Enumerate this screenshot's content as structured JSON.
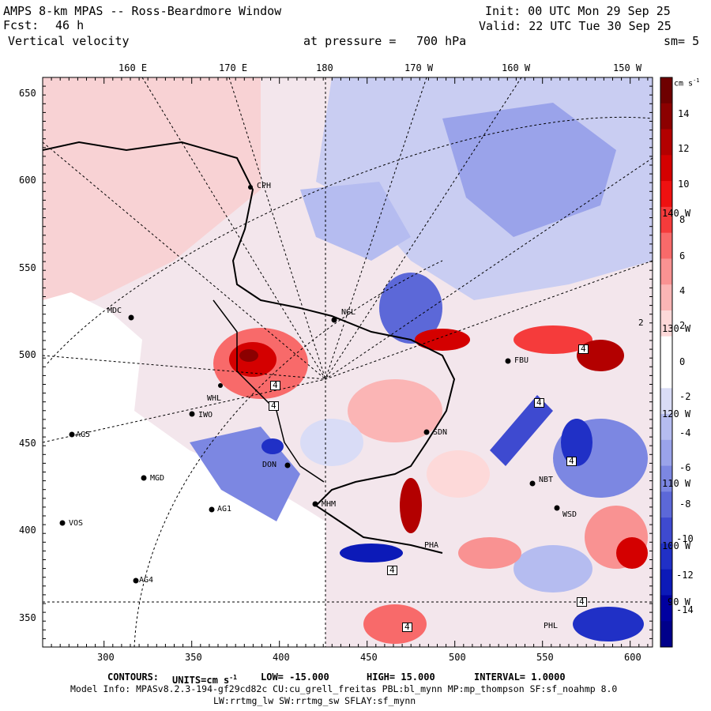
{
  "header": {
    "title": "AMPS 8-km MPAS -- Ross-Beardmore Window",
    "fcst_label": "Fcst:",
    "fcst_value": "46 h",
    "field": "Vertical velocity",
    "pressure_label": "at pressure =",
    "pressure_value": "700 hPa",
    "init": "Init: 00 UTC Mon 29 Sep 25",
    "valid": "Valid: 22 UTC Tue 30 Sep 25",
    "smoothing": "sm= 5"
  },
  "top_axis": [
    "160 E",
    "170 E",
    "180",
    "170 W",
    "160 W",
    "150 W"
  ],
  "right_lon_labels": [
    "140 W",
    "130 W",
    "120 W",
    "110 W",
    "100 W",
    "90 W"
  ],
  "y_axis": [
    "650",
    "600",
    "550",
    "500",
    "450",
    "400",
    "350"
  ],
  "x_axis": [
    "300",
    "350",
    "400",
    "450",
    "500",
    "550",
    "600"
  ],
  "colorbar": {
    "units": "cm s",
    "units_exp": "-1",
    "labels": [
      "14",
      "12",
      "10",
      "8",
      "6",
      "4",
      "2",
      "0",
      "-2",
      "-4",
      "-6",
      "-8",
      "-10",
      "-12",
      "-14"
    ],
    "colors": [
      "#6e0000",
      "#8c0000",
      "#b30000",
      "#d40000",
      "#ee1111",
      "#f53b3b",
      "#f86a6a",
      "#f99292",
      "#fbb5b5",
      "#fdd9d9",
      "#ffffff",
      "#ffffff",
      "#d9dcf6",
      "#b5bcf0",
      "#9aa3ea",
      "#7c87e2",
      "#5c68d8",
      "#3e4ad0",
      "#2030c6",
      "#0c1ab8",
      "#0000a0",
      "#00008a"
    ]
  },
  "stations": [
    "CPH",
    "MDC",
    "NGL",
    "FBU",
    "WHL",
    "IWO",
    "AG5",
    "SDN",
    "DON",
    "MGD",
    "NBT",
    "MHM",
    "AG1",
    "WSD",
    "VOS",
    "PHA",
    "AG4",
    "PHL"
  ],
  "contour_labels": [
    "4",
    "4",
    "4",
    "4",
    "4",
    "4",
    "4",
    "2",
    "4"
  ],
  "footer": {
    "contours_label": "CONTOURS:",
    "units_label": "UNITS=cm s",
    "units_exp": "-1",
    "low": "LOW= -15.000",
    "high": "HIGH= 15.000",
    "interval": "INTERVAL= 1.0000",
    "model_info": "Model Info: MPASv8.2.3-194-gf29cd82c CU:cu_grell_freitas PBL:bl_mynn MP:mp_thompson SF:sf_noahmp 8.0",
    "model_info2": "LW:rrtmg_lw SW:rrtmg_sw SFLAY:sf_mynn"
  }
}
